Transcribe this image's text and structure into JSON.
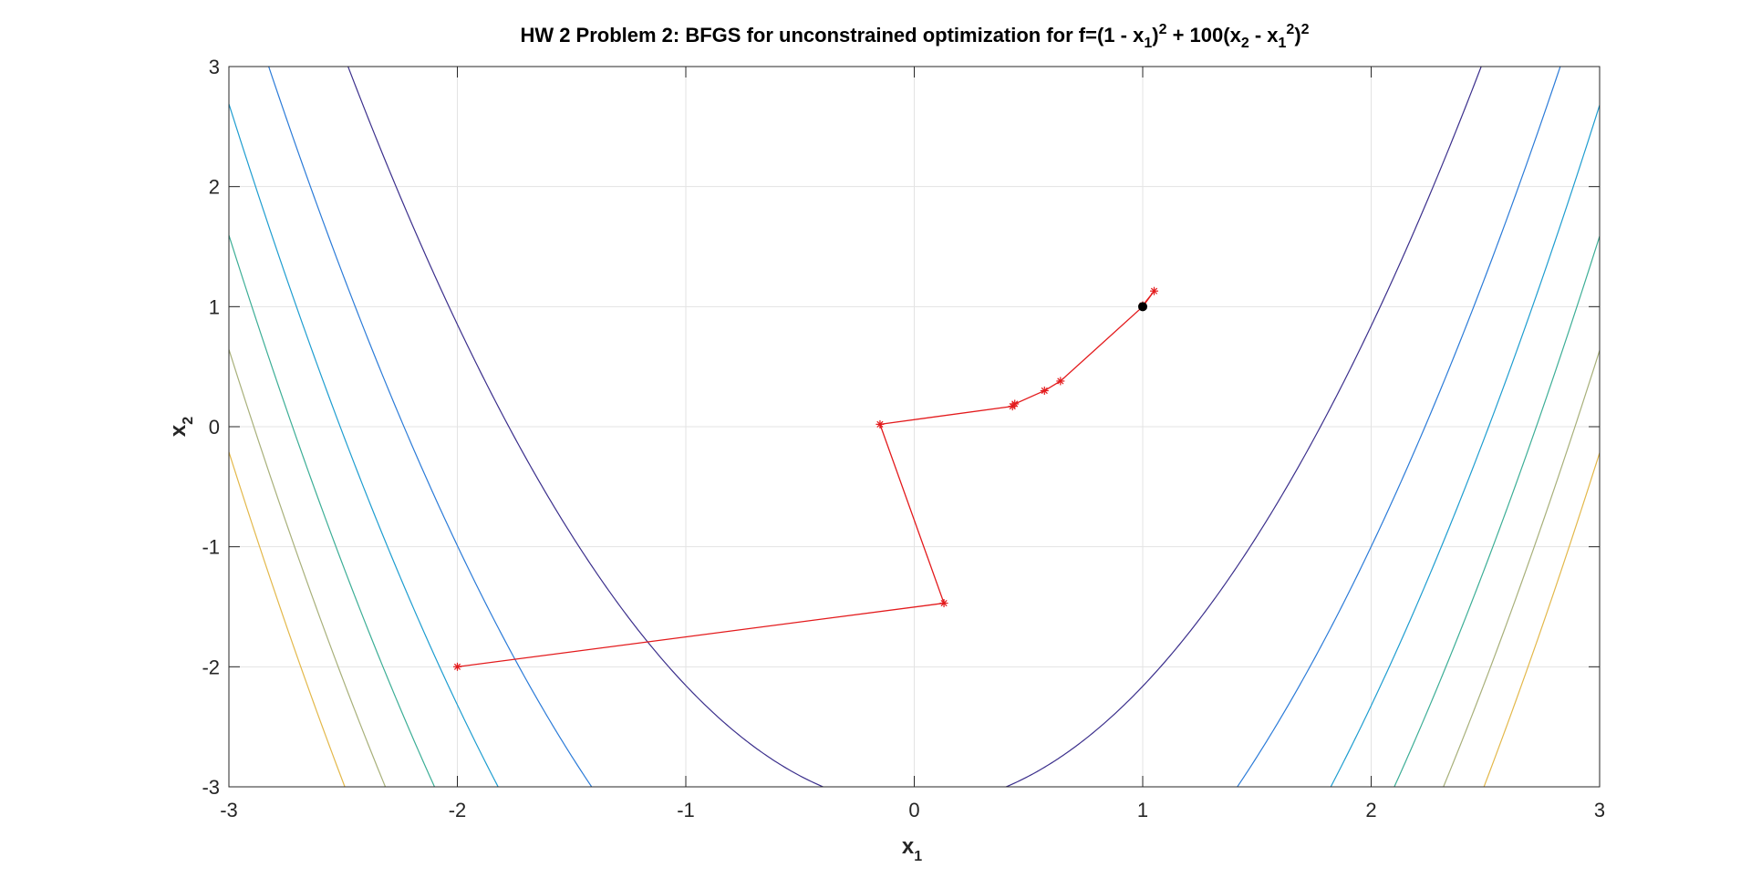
{
  "chart_data": {
    "type": "line",
    "title": {
      "main": "HW 2 Problem 2: BFGS for unconstrained optimization for f=(1 - x",
      "s1": "1",
      "p1": ")",
      "e1": "2",
      "mid": " + 100(x",
      "s2": "2",
      "p2": " - x",
      "s3": "1",
      "e3": "2",
      "p3": ")",
      "e4": "2"
    },
    "xlabel": {
      "base": "x",
      "sub": "1"
    },
    "ylabel": {
      "base": "x",
      "sub": "2"
    },
    "xlim": [
      -3,
      3
    ],
    "ylim": [
      -3,
      3
    ],
    "xticks": [
      -3,
      -2,
      -1,
      0,
      1,
      2,
      3
    ],
    "yticks": [
      -3,
      -2,
      -1,
      0,
      1,
      2,
      3
    ],
    "xtick_labels": [
      "-3",
      "-2",
      "-1",
      "0",
      "1",
      "2",
      "3"
    ],
    "ytick_labels": [
      "-3",
      "-2",
      "-1",
      "0",
      "1",
      "2",
      "3"
    ],
    "grid": true,
    "contour": {
      "function": "(1 - x1)^2 + 100(x2 - x1^2)^2",
      "levels": [
        1000,
        2500,
        4000,
        5500,
        7000,
        8500
      ],
      "colors": [
        "#3b2f8c",
        "#2b7bd8",
        "#1e9dd0",
        "#3cae96",
        "#a8b07a",
        "#e3b84a"
      ]
    },
    "series": [
      {
        "color": "#e31a1c",
        "marker": "*",
        "x": [
          -2.0,
          0.13,
          -0.15,
          0.43,
          0.44,
          0.57,
          0.64,
          1.0,
          1.05,
          1.0
        ],
        "y": [
          -2.0,
          -1.47,
          0.02,
          0.17,
          0.19,
          0.3,
          0.38,
          1.0,
          1.13,
          1.01
        ]
      }
    ],
    "optimum": {
      "x": 1,
      "y": 1,
      "color": "#000000"
    }
  }
}
